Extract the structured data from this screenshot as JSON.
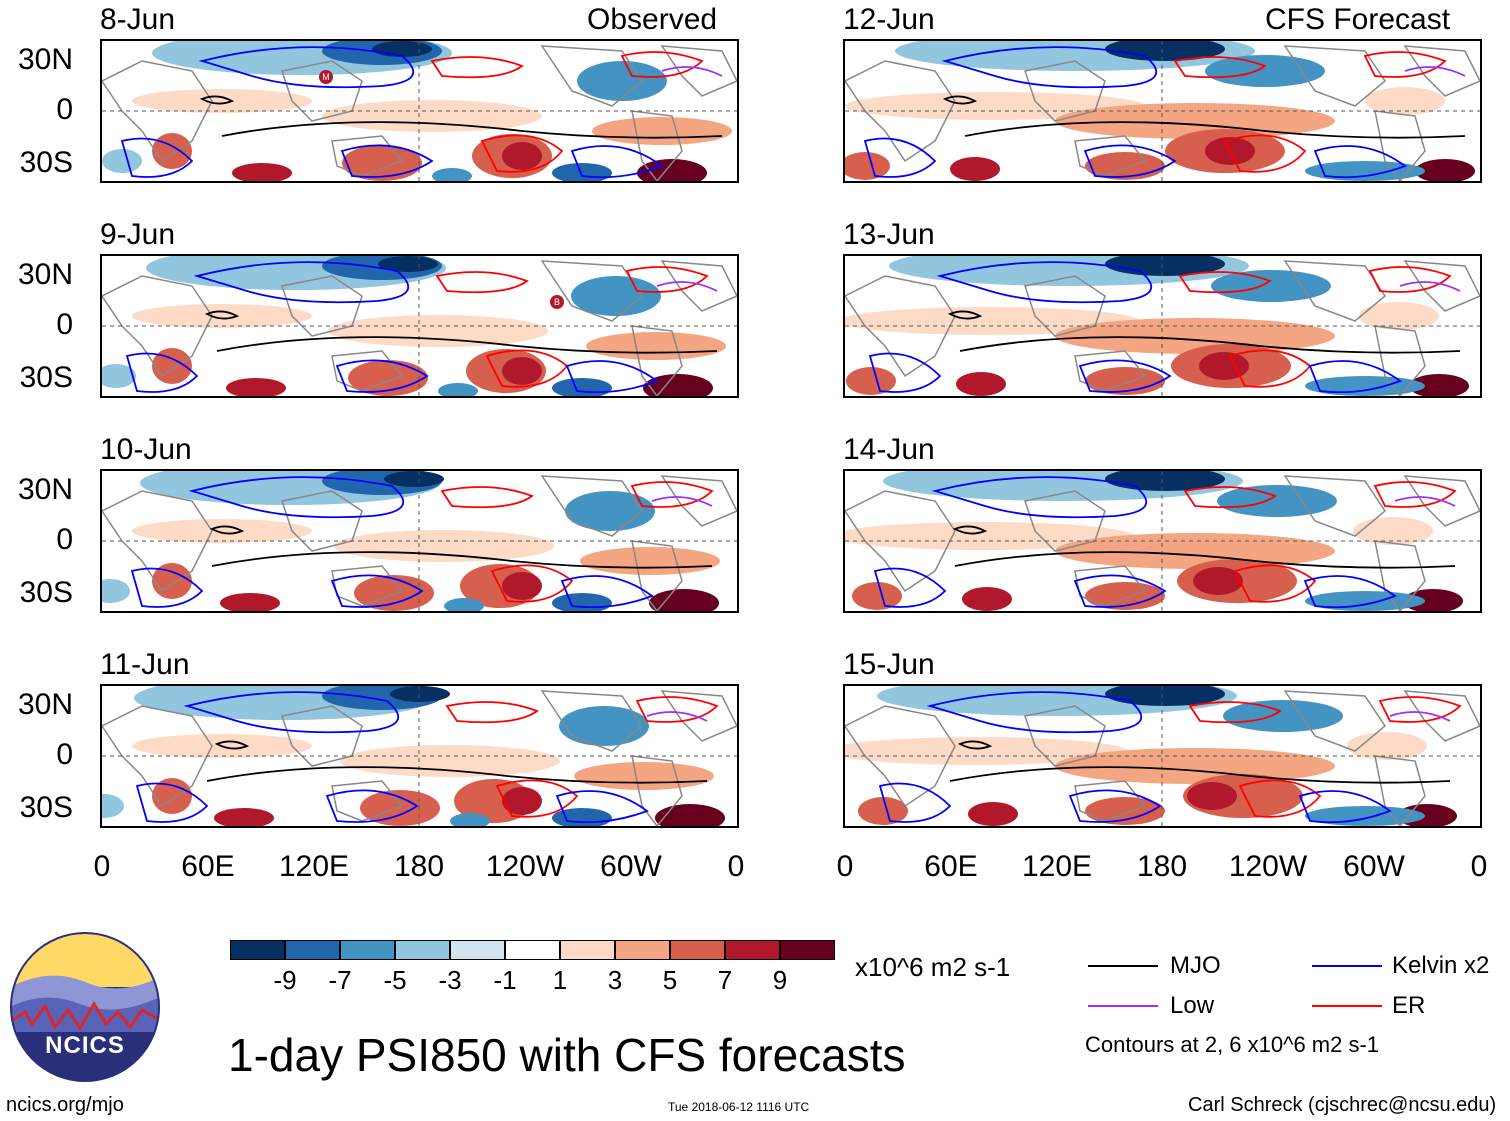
{
  "colors": {
    "scale": [
      "#053061",
      "#2166ac",
      "#4393c3",
      "#92c5de",
      "#d1e5f0",
      "#ffffff",
      "#fddbc7",
      "#f4a582",
      "#d6604d",
      "#b2182b",
      "#67001f"
    ],
    "mjo": "#000000",
    "kelvin": "#0000ff",
    "low": "#9b30ff",
    "er": "#ff0000",
    "land": "#888888",
    "ncics_blue": "#2a2f7a",
    "ncics_yellow": "#ffd966"
  },
  "observed_header": "Observed",
  "forecast_header": "CFS Forecast",
  "left_panels": [
    {
      "date": "8-Jun"
    },
    {
      "date": "9-Jun"
    },
    {
      "date": "10-Jun"
    },
    {
      "date": "11-Jun"
    }
  ],
  "right_panels": [
    {
      "date": "12-Jun"
    },
    {
      "date": "13-Jun"
    },
    {
      "date": "14-Jun"
    },
    {
      "date": "15-Jun"
    }
  ],
  "y_ticks": [
    "30N",
    "0",
    "30S"
  ],
  "x_ticks": [
    "0",
    "60E",
    "120E",
    "180",
    "120W",
    "60W",
    "0"
  ],
  "colorbar": {
    "ticks": [
      "-9",
      "-7",
      "-5",
      "-3",
      "-1",
      "1",
      "3",
      "5",
      "7",
      "9"
    ],
    "units": "x10^6 m2 s-1"
  },
  "legend": {
    "mjo": "MJO",
    "kelvin": "Kelvin x2",
    "low": "Low",
    "er": "ER",
    "contours_note": "Contours at 2, 6 x10^6 m2 s-1"
  },
  "title": "1-day PSI850 with CFS forecasts",
  "logo_text": "NCICS",
  "footer": {
    "left": "ncics.org/mjo",
    "center": "Tue 2018-06-12 1116 UTC",
    "right": "Carl Schreck (cjschrec@ncsu.edu)"
  },
  "storm_markers": {
    "m": "M",
    "b": "B"
  }
}
